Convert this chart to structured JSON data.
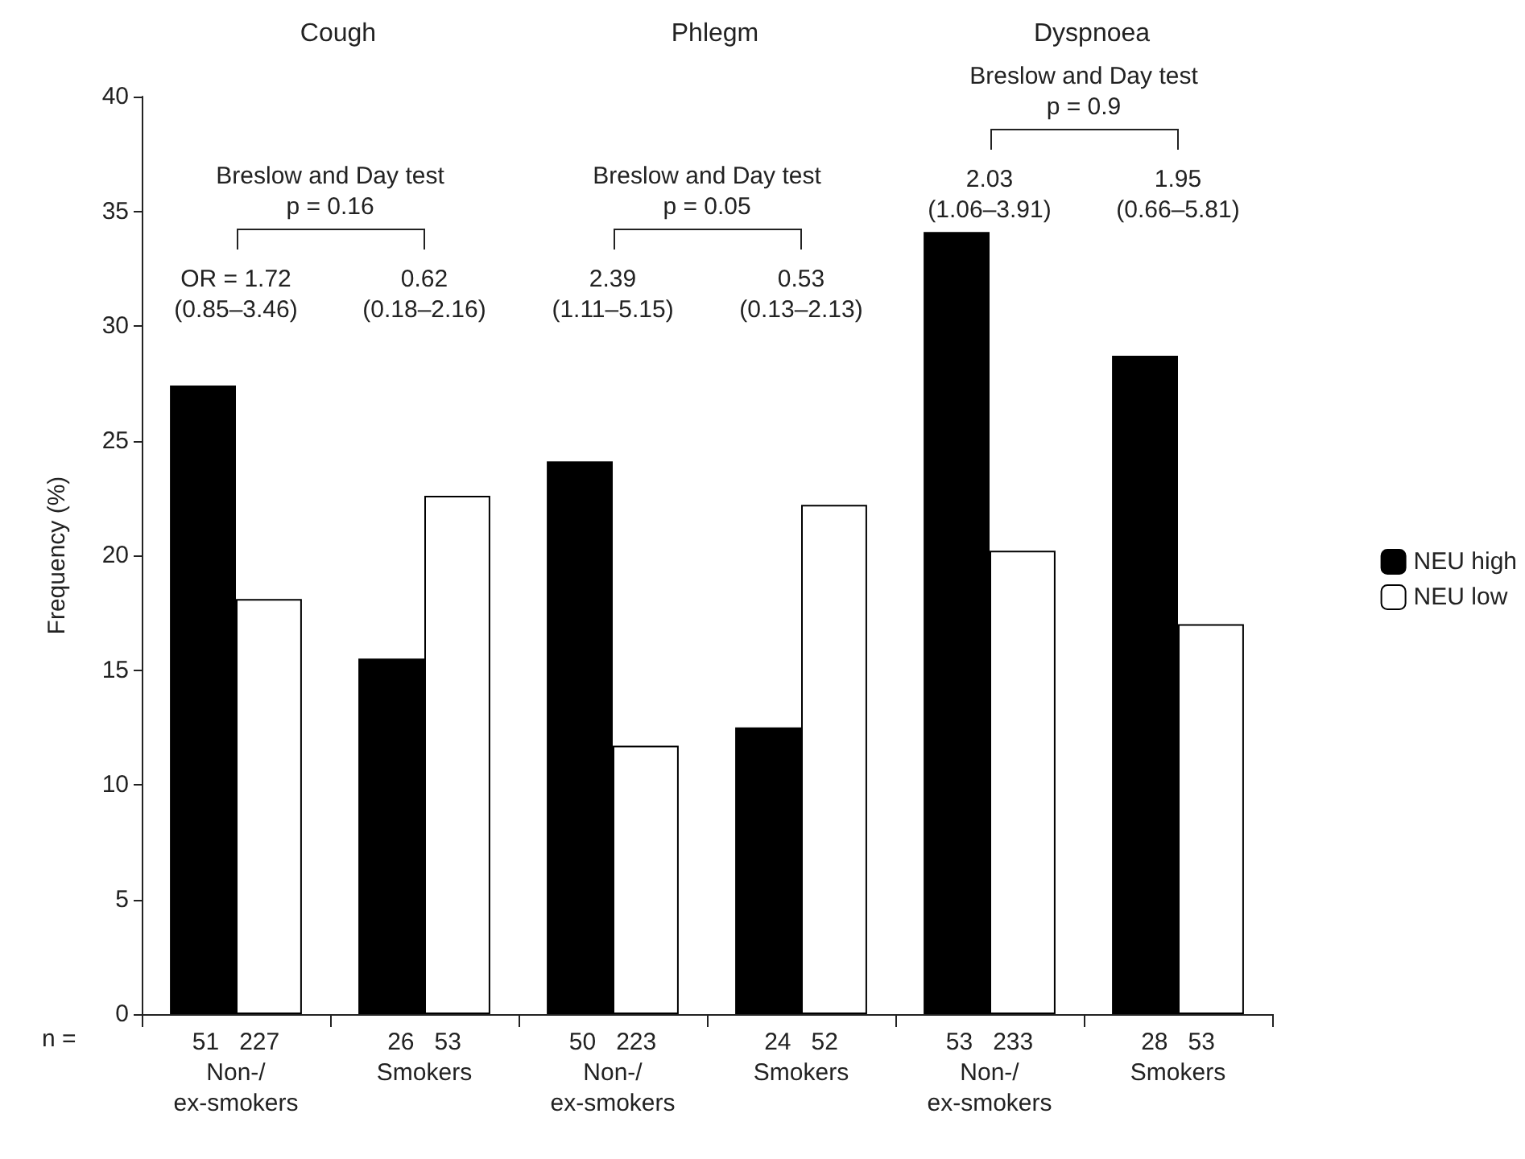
{
  "chart_data": [
    {
      "type": "bar",
      "title": "Cough",
      "ylabel": "Frequency (%)",
      "categories": [
        "51   227\nNon-/\nex-smokers",
        "26   53\nSmokers"
      ],
      "series": [
        {
          "color": "#000000",
          "values": [
            27.4,
            15.5
          ]
        },
        {
          "color": "#ffffff",
          "values": [
            18.1,
            22.6
          ]
        }
      ],
      "ylim": [
        0,
        40
      ],
      "yticks": [
        0,
        5,
        10,
        15,
        20,
        25,
        30,
        35,
        40
      ],
      "legend": false,
      "grid": false,
      "annotations": [
        "Breslow and Day test\np = 0.16",
        "OR = 1.72\n(0.85–3.46)",
        "0.62\n(0.18–2.16)",
        "n ="
      ]
    },
    {
      "type": "bar",
      "title": "Phlegm",
      "categories": [
        "50   223\nNon-/\nex-smokers",
        "24   52\nSmokers"
      ],
      "series": [
        {
          "color": "#000000",
          "values": [
            24.1,
            12.5
          ]
        },
        {
          "color": "#ffffff",
          "values": [
            11.7,
            22.2
          ]
        }
      ],
      "ylim": [
        0,
        40
      ],
      "tick_labels": "x",
      "legend": false,
      "grid": false,
      "annotations": [
        "Breslow and Day test\np = 0.05",
        "2.39\n(1.11–5.15)",
        "0.53\n(0.13–2.13)"
      ]
    },
    {
      "type": "bar",
      "title": "Dyspnoea",
      "categories": [
        "53   233\nNon-/\nex-smokers",
        "28   53\nSmokers"
      ],
      "series": [
        {
          "name": "NEU high",
          "color": "#000000",
          "values": [
            34.1,
            28.7
          ]
        },
        {
          "name": "NEU low",
          "color": "#ffffff",
          "values": [
            20.2,
            17.0
          ]
        }
      ],
      "ylim": [
        0,
        40
      ],
      "tick_labels": "x",
      "legend": "right",
      "grid": false,
      "annotations": [
        "Breslow and Day test\np = 0.9",
        "2.03\n(1.06–3.91)",
        "1.95\n(0.66–5.81)"
      ]
    }
  ]
}
